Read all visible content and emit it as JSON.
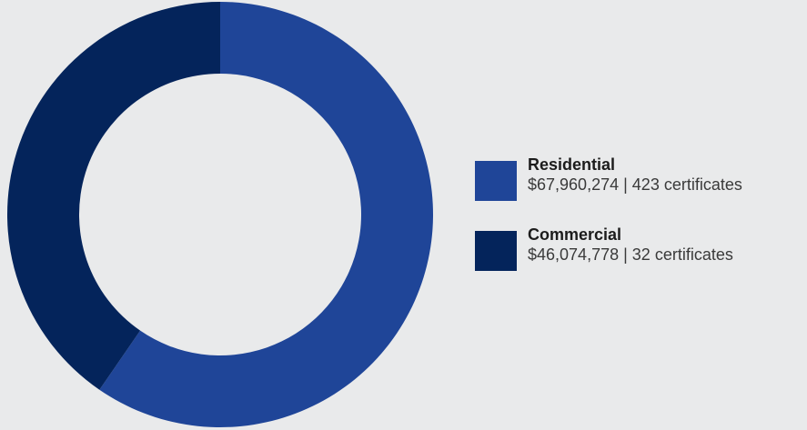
{
  "chart_data": {
    "type": "pie",
    "donut": true,
    "title": "",
    "series": [
      {
        "name": "Residential",
        "value": 67960274,
        "value_label": "$67,960,274",
        "count_label": "423 certificates",
        "color": "#1f4598"
      },
      {
        "name": "Commercial",
        "value": 46074778,
        "value_label": "$46,074,778 ",
        "count_label": "32 certificates",
        "color": "#04245b"
      }
    ],
    "legend_position": "right"
  }
}
